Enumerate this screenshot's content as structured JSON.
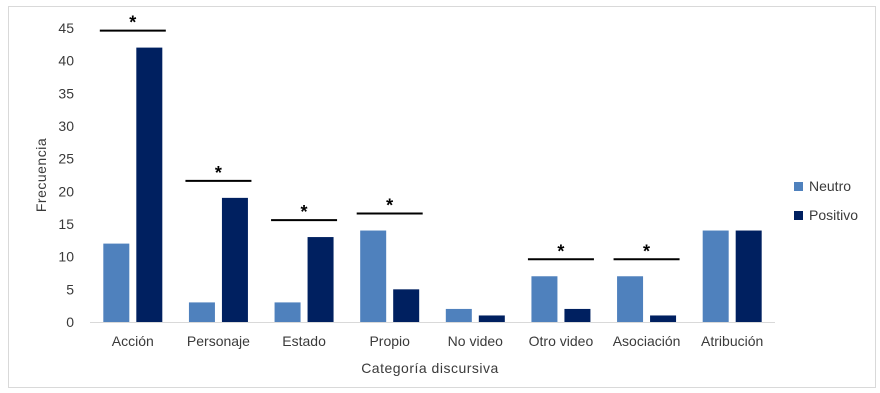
{
  "chart_data": {
    "type": "bar",
    "title": "",
    "xlabel": "Categoría discursiva",
    "ylabel": "Frecuencia",
    "ylim": [
      0,
      45
    ],
    "yticks": [
      0,
      5,
      10,
      15,
      20,
      25,
      30,
      35,
      40,
      45
    ],
    "grid": false,
    "legend_position": "right",
    "categories": [
      "Acción",
      "Personaje",
      "Estado",
      "Propio",
      "No video",
      "Otro video",
      "Asociación",
      "Atribución"
    ],
    "series": [
      {
        "name": "Neutro",
        "color": "#4f81bd",
        "values": [
          12,
          3,
          3,
          14,
          2,
          7,
          7,
          14
        ]
      },
      {
        "name": "Positivo",
        "color": "#002060",
        "values": [
          42,
          19,
          13,
          5,
          1,
          2,
          1,
          14
        ]
      }
    ],
    "significance": {
      "marker": "*",
      "categories": [
        "Acción",
        "Personaje",
        "Estado",
        "Propio",
        "Otro video",
        "Asociación"
      ]
    }
  }
}
